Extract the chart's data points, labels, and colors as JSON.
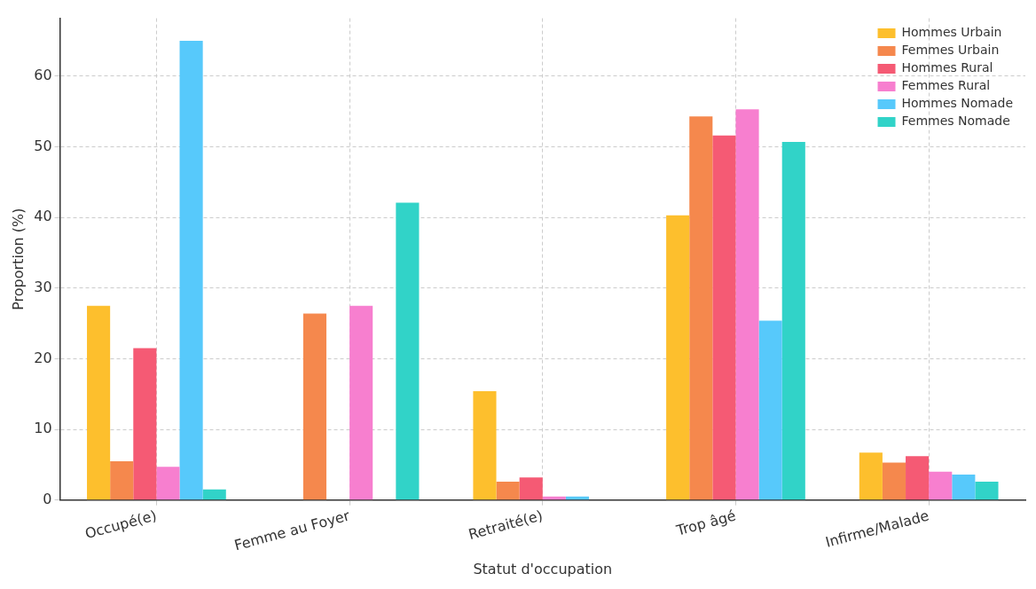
{
  "chart_data": {
    "type": "bar",
    "xlabel": "Statut d'occupation",
    "ylabel": "Proportion (%)",
    "categories": [
      "Occupé(e)",
      "Femme au Foyer",
      "Retraité(e)",
      "Trop âgé",
      "Infirme/Malade"
    ],
    "series": [
      {
        "name": "Hommes Urbain",
        "color": "#fdbf2d",
        "values": [
          27.5,
          0,
          15.4,
          40.3,
          6.7
        ]
      },
      {
        "name": "Femmes Urbain",
        "color": "#f5884d",
        "values": [
          5.5,
          26.4,
          2.6,
          54.3,
          5.3
        ]
      },
      {
        "name": "Hommes Rural",
        "color": "#f55a74",
        "values": [
          21.5,
          0,
          3.2,
          51.6,
          6.2
        ]
      },
      {
        "name": "Femmes Rural",
        "color": "#f77fcf",
        "values": [
          4.7,
          27.5,
          0.5,
          55.3,
          4.0
        ]
      },
      {
        "name": "Hommes Nomade",
        "color": "#57c9fb",
        "values": [
          65,
          0,
          0.5,
          25.4,
          3.6
        ]
      },
      {
        "name": "Femmes Nomade",
        "color": "#31d3c8",
        "values": [
          1.5,
          42.1,
          null,
          50.7,
          2.6
        ]
      }
    ],
    "ylim": [
      0,
      68.2
    ],
    "yticks": [
      0,
      10,
      20,
      30,
      40,
      50,
      60
    ],
    "grid": true,
    "legend": "top right"
  }
}
